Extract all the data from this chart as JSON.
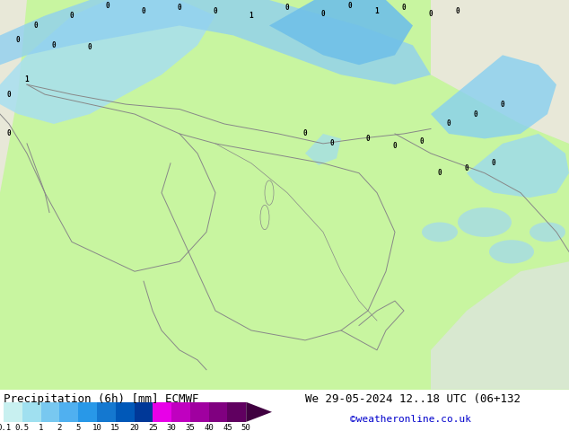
{
  "title_left": "Precipitation (6h) [mm] ECMWF",
  "title_right": "We 29-05-2024 12..18 UTC (06+132",
  "credit": "©weatheronline.co.uk",
  "colorbar_levels": [
    "0.1",
    "0.5",
    "1",
    "2",
    "5",
    "10",
    "15",
    "20",
    "25",
    "30",
    "35",
    "40",
    "45",
    "50"
  ],
  "colorbar_colors": [
    "#c8f0f0",
    "#a0e0f0",
    "#78c8f0",
    "#50b0f0",
    "#2898e8",
    "#1478d0",
    "#0058b8",
    "#003898",
    "#e800e8",
    "#c000c0",
    "#a000a0",
    "#800080",
    "#600060",
    "#400040"
  ],
  "land_color": "#c8f5a0",
  "sea_color": "#c8f5a0",
  "desert_color": "#e8e8d8",
  "precip_light": "#a0e8f8",
  "precip_medium": "#78c8f0",
  "border_color": "#888888",
  "bg_color": "#ffffff",
  "text_color": "#000000",
  "credit_color": "#0000cc",
  "label_fontsize": 8,
  "title_fontsize": 9,
  "figsize": [
    6.34,
    4.9
  ],
  "dpi": 100
}
